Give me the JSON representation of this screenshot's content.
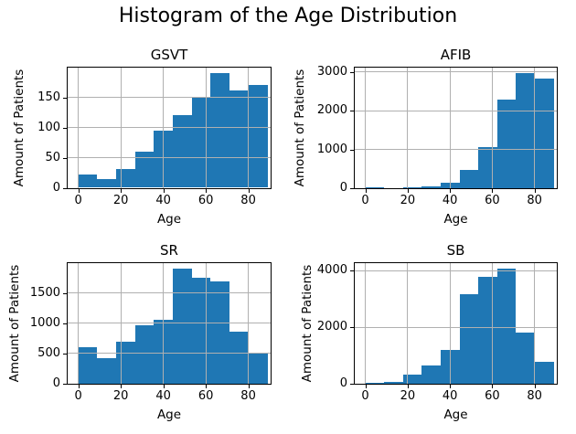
{
  "figure_title": "Histogram of the Age Distribution",
  "colors": {
    "bar": "#1f77b4",
    "grid": "#b0b0b0",
    "spine": "#000000",
    "text": "#000000",
    "background": "#ffffff"
  },
  "chart_data": [
    {
      "type": "bar",
      "subtype": "histogram",
      "title": "GSVT",
      "xlabel": "Age",
      "ylabel": "Amount of Patients",
      "bin_edges": [
        0,
        8.9,
        17.8,
        26.7,
        35.6,
        44.5,
        53.4,
        62.3,
        71.2,
        80.1,
        89
      ],
      "values": [
        22,
        15,
        31,
        60,
        95,
        121,
        150,
        190,
        161,
        170
      ],
      "xticks": [
        0,
        20,
        40,
        60,
        80
      ],
      "yticks": [
        0,
        50,
        100,
        150
      ],
      "xlim": [
        -5,
        90.5
      ],
      "ylim": [
        0,
        199.5
      ],
      "grid": true,
      "legend": false
    },
    {
      "type": "bar",
      "subtype": "histogram",
      "title": "AFIB",
      "xlabel": "Age",
      "ylabel": "Amount of Patients",
      "bin_edges": [
        0,
        8.9,
        17.8,
        26.7,
        35.6,
        44.5,
        53.4,
        62.3,
        71.2,
        80.1,
        89
      ],
      "values": [
        25,
        10,
        15,
        40,
        130,
        470,
        1050,
        2290,
        2960,
        2820
      ],
      "xticks": [
        0,
        20,
        40,
        60,
        80
      ],
      "yticks": [
        0,
        1000,
        2000,
        3000
      ],
      "xlim": [
        -5,
        90.5
      ],
      "ylim": [
        0,
        3110
      ],
      "grid": true,
      "legend": false
    },
    {
      "type": "bar",
      "subtype": "histogram",
      "title": "SR",
      "xlabel": "Age",
      "ylabel": "Amount of Patients",
      "bin_edges": [
        0,
        8.9,
        17.8,
        26.7,
        35.6,
        44.5,
        53.4,
        62.3,
        71.2,
        80.1,
        89
      ],
      "values": [
        600,
        430,
        690,
        960,
        1060,
        1900,
        1750,
        1700,
        860,
        500
      ],
      "xticks": [
        0,
        20,
        40,
        60,
        80
      ],
      "yticks": [
        0,
        500,
        1000,
        1500
      ],
      "xlim": [
        -5,
        90.5
      ],
      "ylim": [
        0,
        1995
      ],
      "grid": true,
      "legend": false
    },
    {
      "type": "bar",
      "subtype": "histogram",
      "title": "SB",
      "xlabel": "Age",
      "ylabel": "Amount of Patients",
      "bin_edges": [
        0,
        8.9,
        17.8,
        26.7,
        35.6,
        44.5,
        53.4,
        62.3,
        71.2,
        80.1,
        89
      ],
      "values": [
        30,
        80,
        320,
        660,
        1200,
        3170,
        3780,
        4060,
        1820,
        770
      ],
      "xticks": [
        0,
        20,
        40,
        60,
        80
      ],
      "yticks": [
        0,
        2000,
        4000
      ],
      "xlim": [
        -5,
        90.5
      ],
      "ylim": [
        0,
        4263
      ],
      "grid": true,
      "legend": false
    }
  ]
}
